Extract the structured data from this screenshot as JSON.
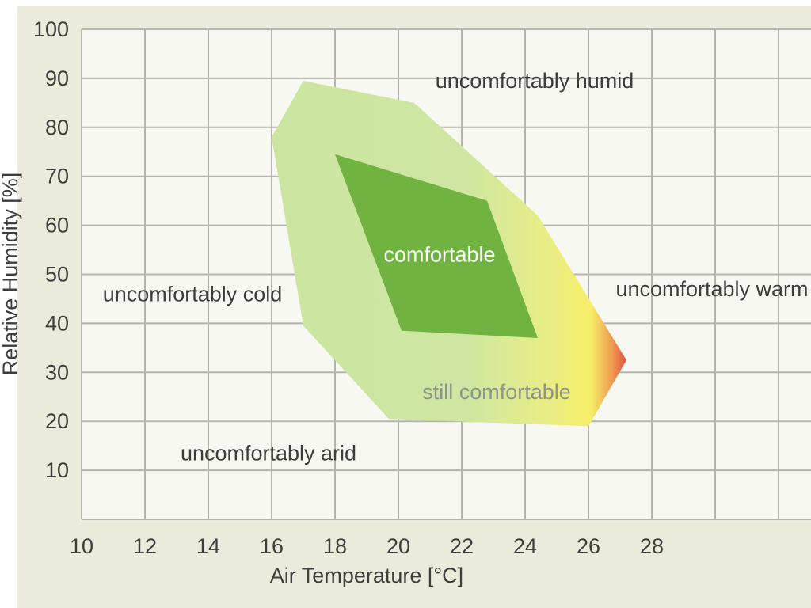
{
  "page": {
    "background": "#ffffff",
    "canvas_color": "#ebebdc"
  },
  "chart_data": {
    "type": "area",
    "title": "",
    "xlabel": "Air Temperature [°C]",
    "ylabel": "Relative Humidity [%]",
    "xlim": [
      10,
      33
    ],
    "ylim": [
      0,
      100
    ],
    "x_tick_step": 2,
    "x_ticks": [
      10,
      12,
      14,
      16,
      18,
      20,
      22,
      24,
      26,
      28
    ],
    "y_ticks": [
      10,
      20,
      30,
      40,
      50,
      60,
      70,
      80,
      90,
      100
    ],
    "grid": true,
    "grid_color": "#b5b5ad",
    "plot_background": "#f8f8f2",
    "text_color": "#3d3d3d",
    "regions": [
      {
        "name": "still-comfortable-zone",
        "label": "still comfortable",
        "vertices": [
          [
            16,
            78
          ],
          [
            17,
            89.5
          ],
          [
            20.5,
            85
          ],
          [
            24.4,
            62
          ],
          [
            27.2,
            32.5
          ],
          [
            26,
            19
          ],
          [
            19.7,
            20.5
          ],
          [
            17,
            39.5
          ]
        ],
        "gradient": [
          {
            "offset": 0,
            "color": "#cbe5a1"
          },
          {
            "offset": 0.55,
            "color": "#cee6a2"
          },
          {
            "offset": 0.78,
            "color": "#e9ed85"
          },
          {
            "offset": 0.9,
            "color": "#f6ee68"
          },
          {
            "offset": 0.96,
            "color": "#f09a4e"
          },
          {
            "offset": 1,
            "color": "#dd5243"
          }
        ]
      },
      {
        "name": "comfortable-zone",
        "label": "comfortable",
        "fill": "#71b341",
        "vertices": [
          [
            18,
            74.5
          ],
          [
            22.8,
            65
          ],
          [
            24.4,
            37
          ],
          [
            20.1,
            38.5
          ]
        ]
      }
    ],
    "annotations": [
      {
        "text": "uncomfortably humid",
        "x": 24.3,
        "y": 89.5,
        "color": "#3d3d3d"
      },
      {
        "text": "uncomfortably cold",
        "x": 13.5,
        "y": 46,
        "color": "#3d3d3d"
      },
      {
        "text": "uncomfortably warm",
        "x": 29.9,
        "y": 47,
        "color": "#3d3d3d"
      },
      {
        "text": "uncomfortably arid",
        "x": 15.9,
        "y": 13.5,
        "color": "#3d3d3d"
      },
      {
        "text": "still comfortable",
        "x": 23.1,
        "y": 26,
        "color": "#8e9388"
      },
      {
        "text": "comfortable",
        "x": 21.3,
        "y": 54,
        "color": "#ffffff"
      }
    ]
  }
}
